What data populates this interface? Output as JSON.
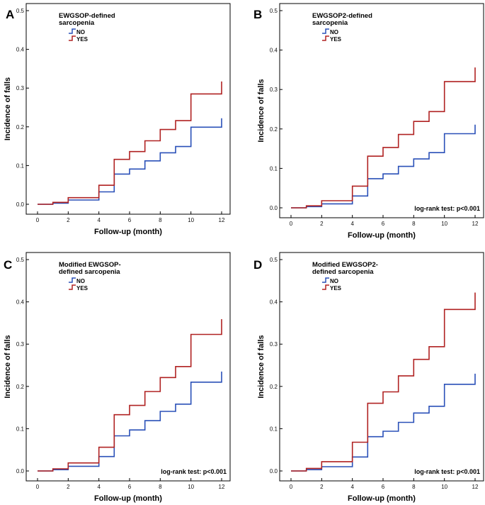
{
  "chart_data": [
    {
      "type": "line",
      "panel_label": "A",
      "legend_title_lines": [
        "EWGSOP-defined",
        "sarcopenia"
      ],
      "xlabel": "Follow-up (month)",
      "ylabel": "Incidence of falls",
      "xlim": [
        0,
        12
      ],
      "ylim": [
        0,
        0.5
      ],
      "x_ticks": [
        0,
        2,
        4,
        6,
        8,
        10,
        12
      ],
      "y_ticks": [
        0.0,
        0.1,
        0.2,
        0.3,
        0.4,
        0.5
      ],
      "y_tick_labels": [
        "0.0",
        "0.1",
        "0.2",
        "0.3",
        "0.4",
        "0.5"
      ],
      "annotation": "",
      "series": [
        {
          "name": "NO",
          "color": "#2a50b8",
          "x": [
            0,
            1,
            2,
            4,
            5,
            6,
            7,
            8,
            9,
            10,
            12
          ],
          "y": [
            0,
            0.003,
            0.011,
            0.032,
            0.078,
            0.091,
            0.112,
            0.133,
            0.149,
            0.199,
            0.222
          ]
        },
        {
          "name": "YES",
          "color": "#b02222",
          "x": [
            0,
            1,
            2,
            4,
            5,
            6,
            7,
            8,
            9,
            10,
            12
          ],
          "y": [
            0,
            0.005,
            0.017,
            0.049,
            0.116,
            0.136,
            0.164,
            0.193,
            0.216,
            0.285,
            0.317
          ]
        }
      ]
    },
    {
      "type": "line",
      "panel_label": "B",
      "legend_title_lines": [
        "EWGSOP2-defined",
        "sarcopenia"
      ],
      "xlabel": "Follow-up (month)",
      "ylabel": "Incidence of falls",
      "xlim": [
        0,
        12
      ],
      "ylim": [
        0,
        0.5
      ],
      "x_ticks": [
        0,
        2,
        4,
        6,
        8,
        10,
        12
      ],
      "y_ticks": [
        0.0,
        0.1,
        0.2,
        0.3,
        0.4,
        0.5
      ],
      "y_tick_labels": [
        "0.0",
        "0.1",
        "0.2",
        "0.3",
        "0.4",
        "0.5"
      ],
      "annotation": "log-rank  test: p<0.001",
      "series": [
        {
          "name": "NO",
          "color": "#2a50b8",
          "x": [
            0,
            1,
            2,
            4,
            5,
            6,
            7,
            8,
            9,
            10,
            12
          ],
          "y": [
            0,
            0.003,
            0.01,
            0.03,
            0.074,
            0.086,
            0.105,
            0.124,
            0.14,
            0.188,
            0.211
          ]
        },
        {
          "name": "YES",
          "color": "#b02222",
          "x": [
            0,
            1,
            2,
            4,
            5,
            6,
            7,
            8,
            9,
            10,
            12
          ],
          "y": [
            0,
            0.005,
            0.018,
            0.055,
            0.131,
            0.153,
            0.186,
            0.219,
            0.244,
            0.32,
            0.356
          ]
        }
      ]
    },
    {
      "type": "line",
      "panel_label": "C",
      "legend_title_lines": [
        "Modified EWGSOP-",
        "defined sarcopenia"
      ],
      "xlabel": "Follow-up (month)",
      "ylabel": "Incidence of falls",
      "xlim": [
        0,
        12
      ],
      "ylim": [
        0,
        0.5
      ],
      "x_ticks": [
        0,
        2,
        4,
        6,
        8,
        10,
        12
      ],
      "y_ticks": [
        0.0,
        0.1,
        0.2,
        0.3,
        0.4,
        0.5
      ],
      "y_tick_labels": [
        "0.0",
        "0.1",
        "0.2",
        "0.3",
        "0.4",
        "0.5"
      ],
      "annotation": "log-rank test: p<0.001",
      "series": [
        {
          "name": "NO",
          "color": "#2a50b8",
          "x": [
            0,
            1,
            2,
            4,
            5,
            6,
            7,
            8,
            9,
            10,
            12
          ],
          "y": [
            0,
            0.003,
            0.011,
            0.034,
            0.083,
            0.097,
            0.119,
            0.141,
            0.158,
            0.21,
            0.235
          ]
        },
        {
          "name": "YES",
          "color": "#b02222",
          "x": [
            0,
            1,
            2,
            4,
            5,
            6,
            7,
            8,
            9,
            10,
            12
          ],
          "y": [
            0,
            0.005,
            0.019,
            0.056,
            0.133,
            0.155,
            0.188,
            0.221,
            0.247,
            0.323,
            0.359
          ]
        }
      ]
    },
    {
      "type": "line",
      "panel_label": "D",
      "legend_title_lines": [
        "Modified EWGSOP2-",
        "defined sarcopenia"
      ],
      "xlabel": "Follow-up (month)",
      "ylabel": "Incidence of falls",
      "xlim": [
        0,
        12
      ],
      "ylim": [
        0,
        0.5
      ],
      "x_ticks": [
        0,
        2,
        4,
        6,
        8,
        10,
        12
      ],
      "y_ticks": [
        0.0,
        0.1,
        0.2,
        0.3,
        0.4,
        0.5
      ],
      "y_tick_labels": [
        "0.0",
        "0.1",
        "0.2",
        "0.3",
        "0.4",
        "0.5"
      ],
      "annotation": "log-rank test: p<0.001",
      "series": [
        {
          "name": "NO",
          "color": "#2a50b8",
          "x": [
            0,
            1,
            2,
            4,
            5,
            6,
            7,
            8,
            9,
            10,
            12
          ],
          "y": [
            0,
            0.003,
            0.01,
            0.033,
            0.081,
            0.094,
            0.115,
            0.137,
            0.153,
            0.205,
            0.23
          ]
        },
        {
          "name": "YES",
          "color": "#b02222",
          "x": [
            0,
            1,
            2,
            4,
            5,
            6,
            7,
            8,
            9,
            10,
            12
          ],
          "y": [
            0,
            0.006,
            0.022,
            0.068,
            0.16,
            0.187,
            0.225,
            0.264,
            0.294,
            0.382,
            0.422
          ]
        }
      ]
    }
  ]
}
